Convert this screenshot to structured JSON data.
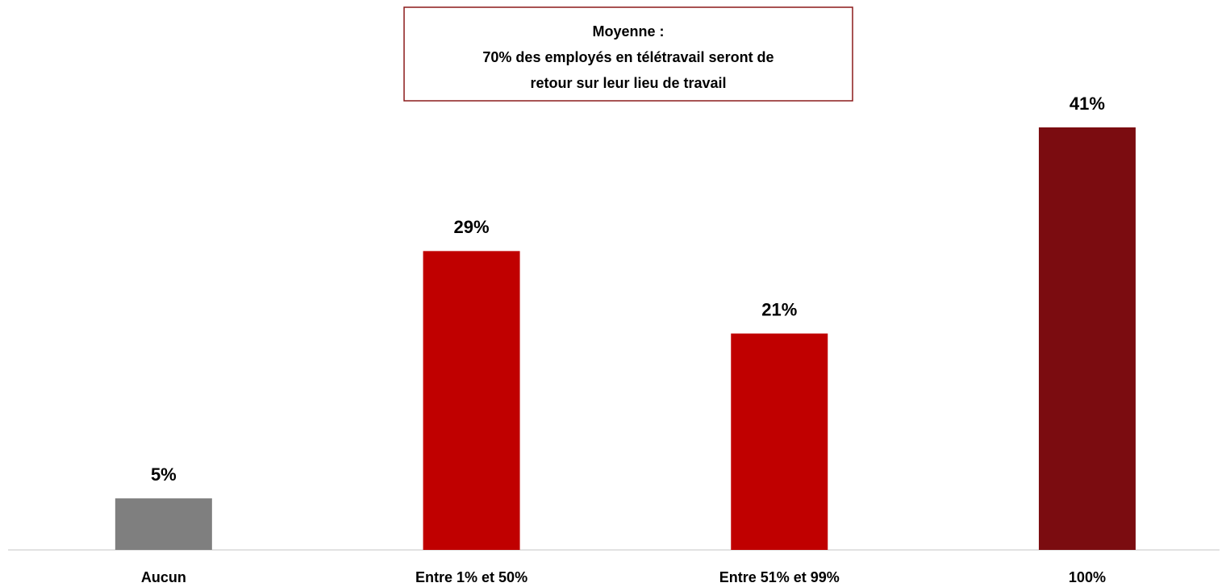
{
  "chart_data": {
    "type": "bar",
    "categories": [
      "Aucun",
      "Entre 1% et 50%",
      "Entre 51% et 99%",
      "100%"
    ],
    "values": [
      5,
      29,
      21,
      41
    ],
    "value_labels": [
      "5%",
      "29%",
      "21%",
      "41%"
    ],
    "colors": [
      "#7f7f7f",
      "#c00000",
      "#c00000",
      "#7b0c10"
    ],
    "annotation": [
      "Moyenne :",
      "70% des employés en télétravail seront de",
      "retour sur leur lieu de travail"
    ]
  }
}
